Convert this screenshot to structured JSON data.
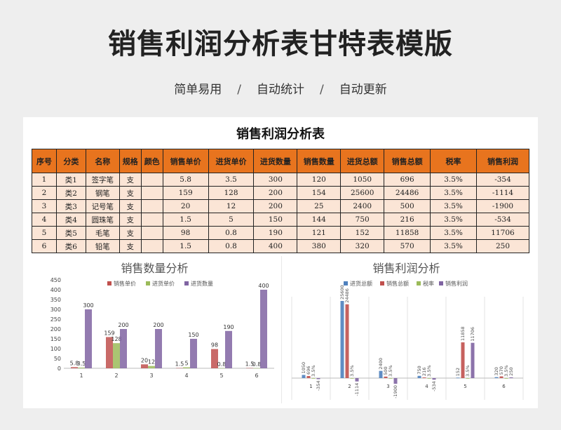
{
  "header": {
    "title": "销售利润分析表甘特表模版",
    "tags": [
      "简单易用",
      "自动统计",
      "自动更新"
    ],
    "separator": "/"
  },
  "sheet": {
    "title": "销售利润分析表",
    "columns": [
      "序号",
      "分类",
      "名称",
      "规格",
      "颜色",
      "销售单价",
      "进货单价",
      "进货数量",
      "销售数量",
      "进货总额",
      "销售总额",
      "税率",
      "销售利润"
    ],
    "rows": [
      [
        "1",
        "类1",
        "签字笔",
        "支",
        "",
        "5.8",
        "3.5",
        "300",
        "120",
        "1050",
        "696",
        "3.5%",
        "-354"
      ],
      [
        "2",
        "类2",
        "钢笔",
        "支",
        "",
        "159",
        "128",
        "200",
        "154",
        "25600",
        "24486",
        "3.5%",
        "-1114"
      ],
      [
        "3",
        "类3",
        "记号笔",
        "支",
        "",
        "20",
        "12",
        "200",
        "25",
        "2400",
        "500",
        "3.5%",
        "-1900"
      ],
      [
        "4",
        "类4",
        "圆珠笔",
        "支",
        "",
        "1.5",
        "5",
        "150",
        "144",
        "750",
        "216",
        "3.5%",
        "-534"
      ],
      [
        "5",
        "类5",
        "毛笔",
        "支",
        "",
        "98",
        "0.8",
        "190",
        "121",
        "152",
        "11858",
        "3.5%",
        "11706"
      ],
      [
        "6",
        "类6",
        "铅笔",
        "支",
        "",
        "1.5",
        "0.8",
        "400",
        "380",
        "320",
        "570",
        "3.5%",
        "250"
      ]
    ]
  },
  "chart_data": [
    {
      "type": "bar",
      "title": "销售数量分析",
      "categories": [
        "1",
        "2",
        "3",
        "4",
        "5",
        "6"
      ],
      "series": [
        {
          "name": "销售单价",
          "values": [
            5.8,
            159,
            20,
            1.5,
            98,
            1.5
          ],
          "color": "#c0504d"
        },
        {
          "name": "进货单价",
          "values": [
            3.5,
            128,
            12,
            5,
            0.8,
            0.8
          ],
          "color": "#9bbb59"
        },
        {
          "name": "进货数量",
          "values": [
            300,
            200,
            200,
            150,
            190,
            400
          ],
          "color": "#8064a2"
        }
      ],
      "data_labels": [
        [
          "5.8",
          "3.5",
          "300"
        ],
        [
          "159",
          "128",
          "200"
        ],
        [
          "20",
          "12",
          "200"
        ],
        [
          "1.5",
          "5",
          "150"
        ],
        [
          "98",
          "0.8",
          "190"
        ],
        [
          "1.5",
          "0.8",
          "400"
        ]
      ],
      "yticks": [
        "0",
        "50",
        "100",
        "150",
        "200",
        "250",
        "300",
        "350",
        "400",
        "450"
      ],
      "ylim": [
        0,
        450
      ],
      "legend": "top"
    },
    {
      "type": "bar",
      "title": "销售利润分析",
      "categories": [
        "1",
        "2",
        "3",
        "4",
        "5",
        "6"
      ],
      "series": [
        {
          "name": "进货总额",
          "values": [
            1050,
            25600,
            2400,
            750,
            152,
            320
          ],
          "color": "#4f81bd"
        },
        {
          "name": "销售总额",
          "values": [
            696,
            24486,
            500,
            216,
            11858,
            570
          ],
          "color": "#c0504d"
        },
        {
          "name": "税率",
          "values": [
            0.035,
            0.035,
            0.035,
            0.035,
            0.035,
            0.035
          ],
          "color": "#9bbb59"
        },
        {
          "name": "销售利润",
          "values": [
            -354,
            -1114,
            -1900,
            -534,
            11706,
            250
          ],
          "color": "#8064a2"
        }
      ],
      "data_labels": [
        [
          "1050",
          "696",
          "3.5%",
          "-354"
        ],
        [
          "25600",
          "24486",
          "3.5%",
          "-1114"
        ],
        [
          "2400",
          "500",
          "3.5%",
          "-1900"
        ],
        [
          "750",
          "216",
          "3.5%",
          "-534"
        ],
        [
          "152",
          "11858",
          "3.5%",
          "11706"
        ],
        [
          "320",
          "570",
          "3.5%",
          "250"
        ]
      ],
      "ylim": [
        -5000,
        27000
      ],
      "legend": "top"
    }
  ]
}
